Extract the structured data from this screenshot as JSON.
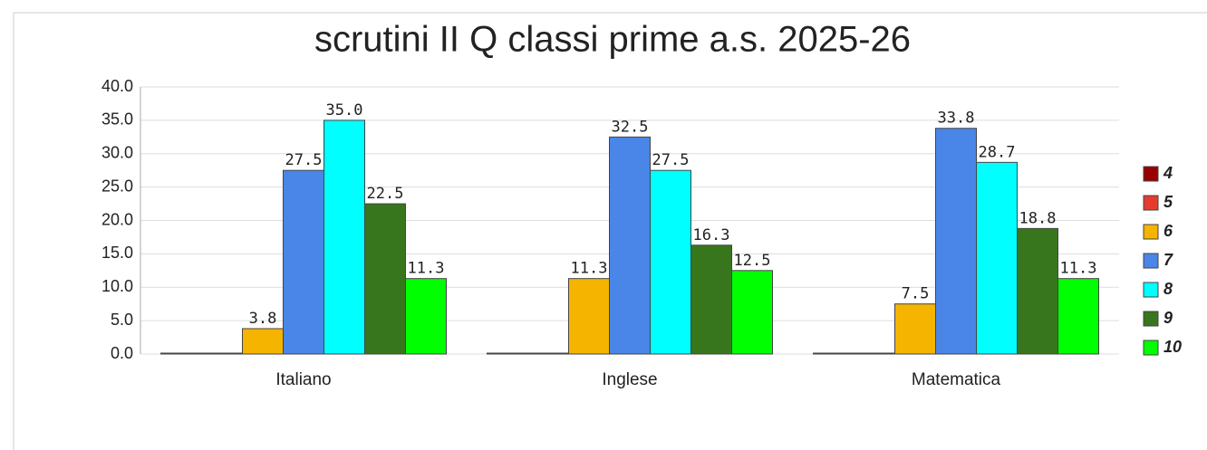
{
  "chart_data": {
    "type": "bar",
    "title": "scrutini II Q classi prime a.s. 2025-26",
    "categories": [
      "Italiano",
      "Inglese",
      "Matematica"
    ],
    "series": [
      {
        "name": "4",
        "color": "#990000",
        "values": [
          0,
          0,
          0
        ]
      },
      {
        "name": "5",
        "color": "#e53c2e",
        "values": [
          0,
          0,
          0
        ]
      },
      {
        "name": "6",
        "color": "#f4b400",
        "values": [
          3.8,
          11.3,
          7.5
        ],
        "value_labels": [
          "3.8",
          "11.3",
          "7.5"
        ]
      },
      {
        "name": "7",
        "color": "#4a86e8",
        "values": [
          27.5,
          32.5,
          33.8
        ],
        "value_labels": [
          "27.5",
          "32.5",
          "33.8"
        ]
      },
      {
        "name": "8",
        "color": "#00ffff",
        "values": [
          35.0,
          27.5,
          28.7
        ],
        "value_labels": [
          "35.0",
          "27.5",
          "28.7"
        ]
      },
      {
        "name": "9",
        "color": "#38761d",
        "values": [
          22.5,
          16.3,
          18.8
        ],
        "value_labels": [
          "22.5",
          "16.3",
          "18.8"
        ]
      },
      {
        "name": "10",
        "color": "#00ff00",
        "values": [
          11.3,
          12.5,
          11.3
        ],
        "value_labels": [
          "11.3",
          "12.5",
          "11.3"
        ]
      }
    ],
    "ylim": [
      0,
      40
    ],
    "yticks": [
      {
        "value": 0,
        "label": "0.0"
      },
      {
        "value": 5,
        "label": "5.0"
      },
      {
        "value": 10,
        "label": "10.0"
      },
      {
        "value": 15,
        "label": "15.0"
      },
      {
        "value": 20,
        "label": "20.0"
      },
      {
        "value": 25,
        "label": "25.0"
      },
      {
        "value": 30,
        "label": "30.0"
      },
      {
        "value": 35,
        "label": "35.0"
      },
      {
        "value": 40,
        "label": "40.0"
      }
    ],
    "grid": true,
    "legend": "right"
  }
}
